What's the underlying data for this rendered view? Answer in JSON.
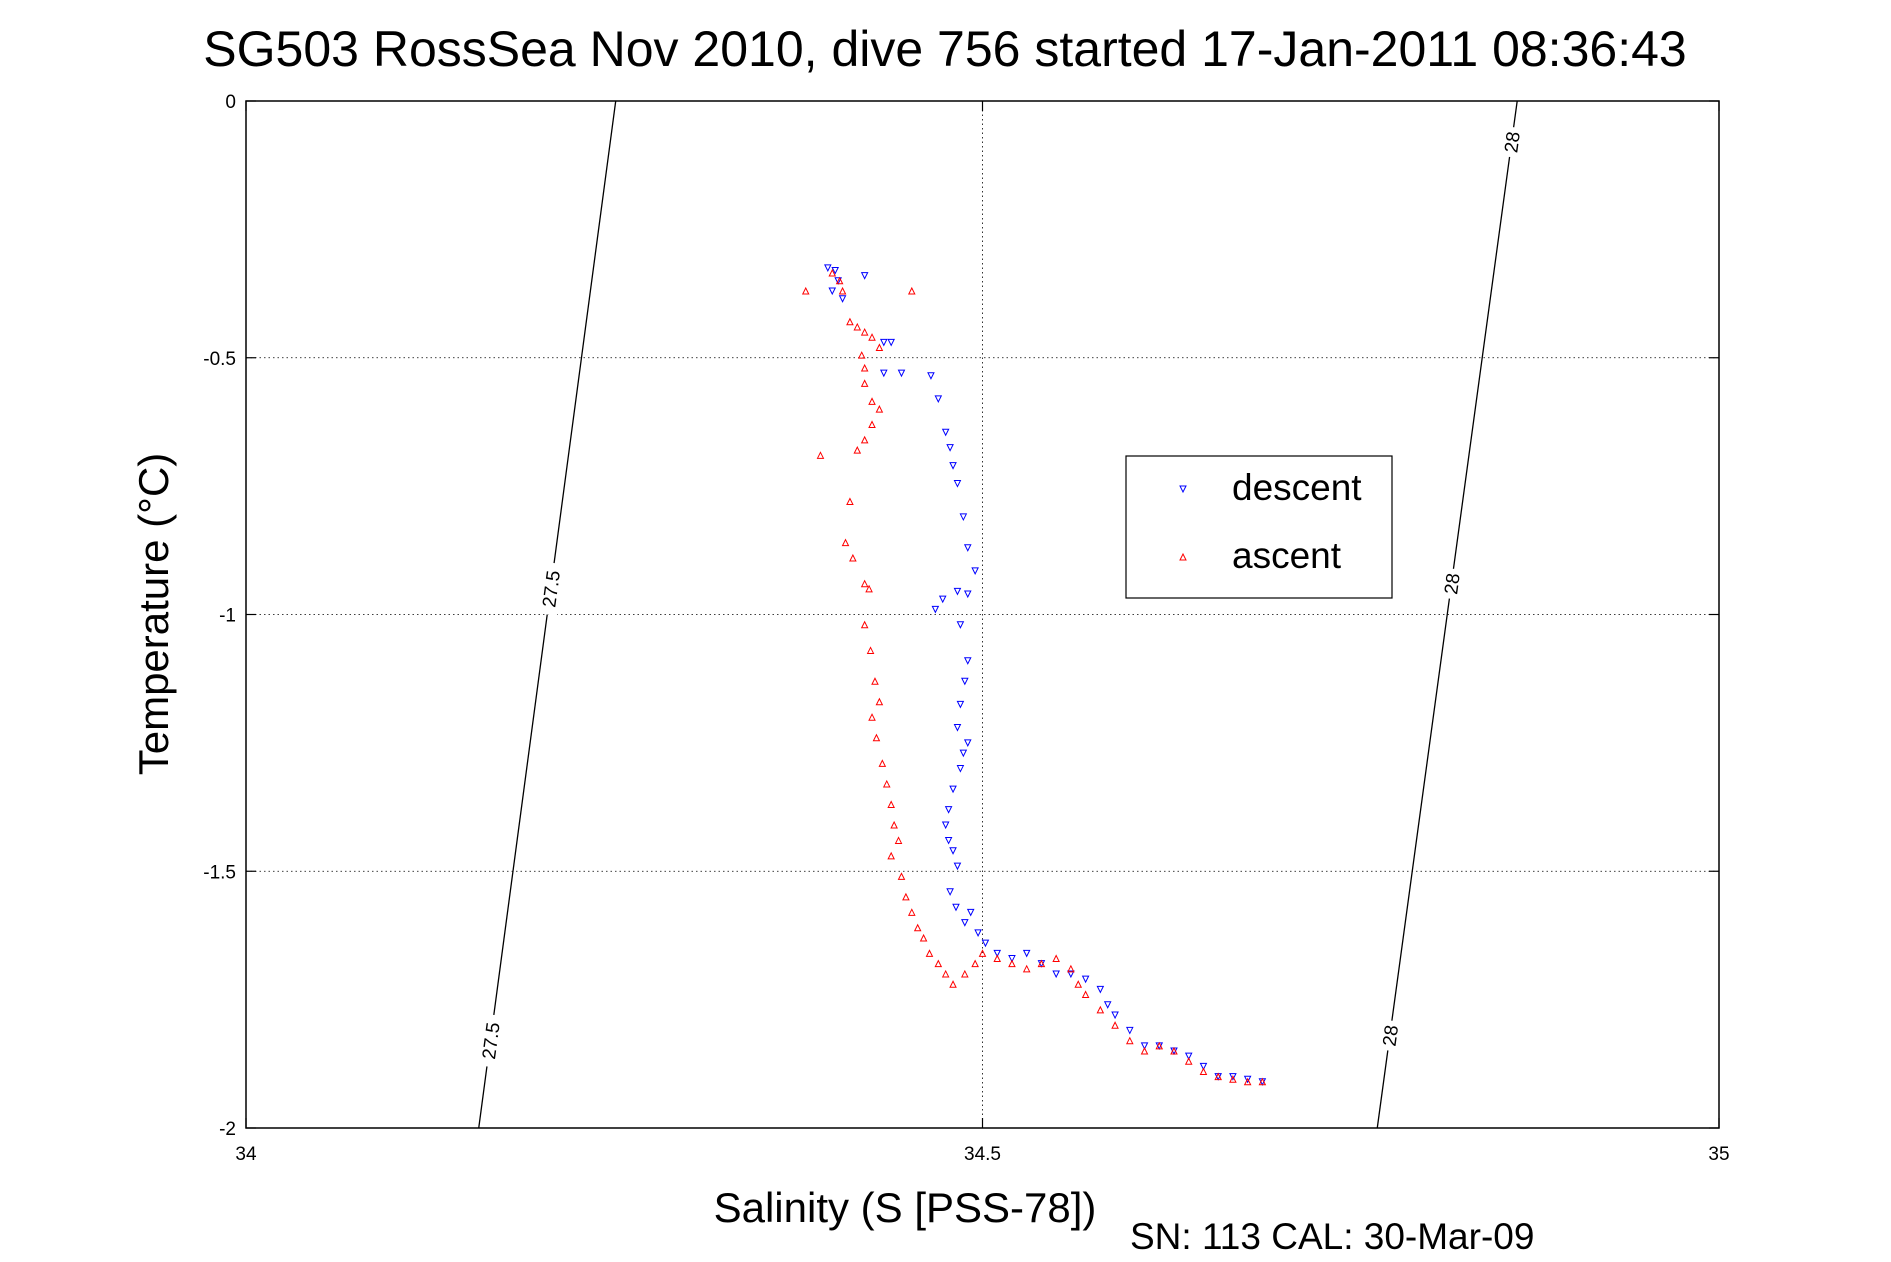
{
  "chart_data": {
    "type": "scatter",
    "title": "SG503 RossSea Nov 2010, dive 756 started 17-Jan-2011 08:36:43",
    "xlabel": "Salinity (S [PSS-78])",
    "ylabel": "Temperature (°C)",
    "xlim": [
      34,
      35
    ],
    "ylim": [
      -2,
      0
    ],
    "xticks": [
      34,
      34.5,
      35
    ],
    "xtick_labels": [
      "34",
      "34.5",
      "35"
    ],
    "yticks": [
      0,
      -0.5,
      -1,
      -1.5,
      -2
    ],
    "ytick_labels": [
      "0",
      "-0.5",
      "-1",
      "-1.5",
      "-2"
    ],
    "grid": true,
    "legend_position": "upper-right, inside",
    "footer": "SN: 113  CAL: 30-Mar-09",
    "isopycnals": [
      {
        "label": "27.5",
        "points": [
          [
            34.158,
            -2.0
          ],
          [
            34.251,
            0.0
          ]
        ]
      },
      {
        "label": "28",
        "points": [
          [
            34.768,
            -2.0
          ],
          [
            34.863,
            0.0
          ]
        ]
      }
    ],
    "isopycnal_labels": [
      {
        "text": "27.5",
        "x": 34.2,
        "y": -1.83
      },
      {
        "text": "27.5",
        "x": 34.2,
        "y": -0.95
      },
      {
        "text": "28",
        "x": 34.81,
        "y": -1.82
      },
      {
        "text": "28",
        "x": 34.81,
        "y": -0.94
      },
      {
        "text": "28",
        "x": 34.86,
        "y": -0.08
      }
    ],
    "series": [
      {
        "name": "descent",
        "color": "#0000ff",
        "marker": "triangle-down",
        "points": [
          [
            34.395,
            -0.325
          ],
          [
            34.4,
            -0.33
          ],
          [
            34.402,
            -0.35
          ],
          [
            34.398,
            -0.37
          ],
          [
            34.405,
            -0.385
          ],
          [
            34.42,
            -0.34
          ],
          [
            34.433,
            -0.47
          ],
          [
            34.438,
            -0.47
          ],
          [
            34.445,
            -0.53
          ],
          [
            34.433,
            -0.53
          ],
          [
            34.465,
            -0.535
          ],
          [
            34.47,
            -0.58
          ],
          [
            34.475,
            -0.645
          ],
          [
            34.478,
            -0.675
          ],
          [
            34.48,
            -0.71
          ],
          [
            34.483,
            -0.745
          ],
          [
            34.487,
            -0.81
          ],
          [
            34.49,
            -0.87
          ],
          [
            34.495,
            -0.915
          ],
          [
            34.483,
            -0.955
          ],
          [
            34.49,
            -0.96
          ],
          [
            34.473,
            -0.97
          ],
          [
            34.468,
            -0.99
          ],
          [
            34.485,
            -1.02
          ],
          [
            34.49,
            -1.09
          ],
          [
            34.488,
            -1.13
          ],
          [
            34.485,
            -1.175
          ],
          [
            34.483,
            -1.22
          ],
          [
            34.49,
            -1.25
          ],
          [
            34.487,
            -1.27
          ],
          [
            34.485,
            -1.3
          ],
          [
            34.48,
            -1.34
          ],
          [
            34.477,
            -1.38
          ],
          [
            34.475,
            -1.41
          ],
          [
            34.477,
            -1.44
          ],
          [
            34.48,
            -1.46
          ],
          [
            34.483,
            -1.49
          ],
          [
            34.478,
            -1.54
          ],
          [
            34.482,
            -1.57
          ],
          [
            34.488,
            -1.6
          ],
          [
            34.492,
            -1.58
          ],
          [
            34.497,
            -1.62
          ],
          [
            34.502,
            -1.64
          ],
          [
            34.51,
            -1.66
          ],
          [
            34.52,
            -1.67
          ],
          [
            34.53,
            -1.66
          ],
          [
            34.54,
            -1.68
          ],
          [
            34.55,
            -1.7
          ],
          [
            34.56,
            -1.7
          ],
          [
            34.57,
            -1.71
          ],
          [
            34.58,
            -1.73
          ],
          [
            34.585,
            -1.76
          ],
          [
            34.59,
            -1.78
          ],
          [
            34.6,
            -1.81
          ],
          [
            34.61,
            -1.84
          ],
          [
            34.62,
            -1.84
          ],
          [
            34.63,
            -1.85
          ],
          [
            34.64,
            -1.86
          ],
          [
            34.65,
            -1.88
          ],
          [
            34.66,
            -1.9
          ],
          [
            34.67,
            -1.9
          ],
          [
            34.68,
            -1.905
          ],
          [
            34.69,
            -1.91
          ]
        ]
      },
      {
        "name": "ascent",
        "color": "#ff0000",
        "marker": "triangle-up",
        "points": [
          [
            34.398,
            -0.335
          ],
          [
            34.403,
            -0.35
          ],
          [
            34.405,
            -0.37
          ],
          [
            34.41,
            -0.43
          ],
          [
            34.415,
            -0.44
          ],
          [
            34.42,
            -0.45
          ],
          [
            34.425,
            -0.46
          ],
          [
            34.43,
            -0.48
          ],
          [
            34.418,
            -0.495
          ],
          [
            34.42,
            -0.52
          ],
          [
            34.42,
            -0.55
          ],
          [
            34.425,
            -0.585
          ],
          [
            34.43,
            -0.6
          ],
          [
            34.425,
            -0.63
          ],
          [
            34.42,
            -0.66
          ],
          [
            34.415,
            -0.68
          ],
          [
            34.39,
            -0.69
          ],
          [
            34.41,
            -0.78
          ],
          [
            34.407,
            -0.86
          ],
          [
            34.412,
            -0.89
          ],
          [
            34.42,
            -0.94
          ],
          [
            34.423,
            -0.95
          ],
          [
            34.42,
            -1.02
          ],
          [
            34.424,
            -1.07
          ],
          [
            34.427,
            -1.13
          ],
          [
            34.43,
            -1.17
          ],
          [
            34.425,
            -1.2
          ],
          [
            34.428,
            -1.24
          ],
          [
            34.432,
            -1.29
          ],
          [
            34.435,
            -1.33
          ],
          [
            34.438,
            -1.37
          ],
          [
            34.44,
            -1.41
          ],
          [
            34.443,
            -1.44
          ],
          [
            34.438,
            -1.47
          ],
          [
            34.445,
            -1.51
          ],
          [
            34.448,
            -1.55
          ],
          [
            34.452,
            -1.58
          ],
          [
            34.456,
            -1.61
          ],
          [
            34.46,
            -1.63
          ],
          [
            34.464,
            -1.66
          ],
          [
            34.47,
            -1.68
          ],
          [
            34.475,
            -1.7
          ],
          [
            34.48,
            -1.72
          ],
          [
            34.488,
            -1.7
          ],
          [
            34.495,
            -1.68
          ],
          [
            34.5,
            -1.66
          ],
          [
            34.51,
            -1.67
          ],
          [
            34.52,
            -1.68
          ],
          [
            34.53,
            -1.69
          ],
          [
            34.54,
            -1.68
          ],
          [
            34.55,
            -1.67
          ],
          [
            34.56,
            -1.69
          ],
          [
            34.565,
            -1.72
          ],
          [
            34.57,
            -1.74
          ],
          [
            34.58,
            -1.77
          ],
          [
            34.59,
            -1.8
          ],
          [
            34.6,
            -1.83
          ],
          [
            34.61,
            -1.85
          ],
          [
            34.62,
            -1.84
          ],
          [
            34.63,
            -1.85
          ],
          [
            34.64,
            -1.87
          ],
          [
            34.65,
            -1.89
          ],
          [
            34.66,
            -1.9
          ],
          [
            34.67,
            -1.905
          ],
          [
            34.68,
            -1.91
          ],
          [
            34.69,
            -1.91
          ],
          [
            34.38,
            -0.37
          ],
          [
            34.452,
            -0.37
          ]
        ]
      }
    ]
  }
}
